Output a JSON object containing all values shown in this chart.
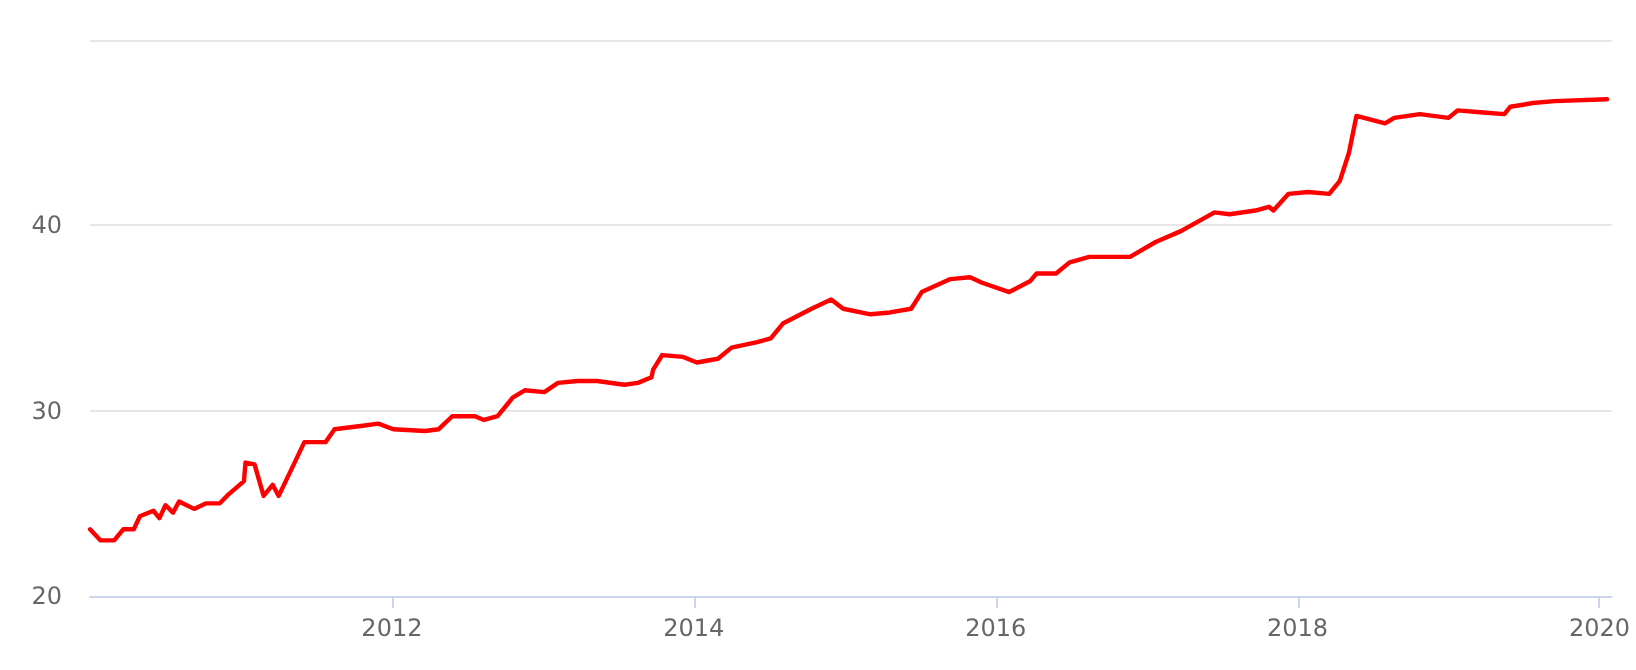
{
  "chart_data": {
    "type": "line",
    "x": [
      2010.0,
      2010.07,
      2010.16,
      2010.22,
      2010.29,
      2010.33,
      2010.42,
      2010.46,
      2010.5,
      2010.55,
      2010.59,
      2010.69,
      2010.77,
      2010.86,
      2010.92,
      2011.02,
      2011.03,
      2011.09,
      2011.15,
      2011.21,
      2011.25,
      2011.35,
      2011.42,
      2011.56,
      2011.62,
      2011.82,
      2011.91,
      2012.01,
      2012.22,
      2012.31,
      2012.4,
      2012.55,
      2012.61,
      2012.7,
      2012.8,
      2012.88,
      2013.01,
      2013.1,
      2013.23,
      2013.36,
      2013.54,
      2013.63,
      2013.72,
      2013.73,
      2013.79,
      2013.93,
      2014.02,
      2014.16,
      2014.25,
      2014.42,
      2014.51,
      2014.59,
      2014.78,
      2014.91,
      2014.99,
      2015.17,
      2015.3,
      2015.44,
      2015.51,
      2015.7,
      2015.83,
      2015.91,
      2016.09,
      2016.23,
      2016.27,
      2016.4,
      2016.49,
      2016.62,
      2016.89,
      2017.06,
      2017.23,
      2017.45,
      2017.55,
      2017.72,
      2017.81,
      2017.84,
      2017.94,
      2018.07,
      2018.21,
      2018.28,
      2018.34,
      2018.39,
      2018.58,
      2018.64,
      2018.81,
      2019.0,
      2019.06,
      2019.21,
      2019.37,
      2019.41,
      2019.56,
      2019.7,
      2020.05
    ],
    "series": [
      {
        "color": "#ff0000",
        "values": [
          23.6,
          23.0,
          23.0,
          23.6,
          23.6,
          24.3,
          24.6,
          24.2,
          24.9,
          24.5,
          25.1,
          24.7,
          25.0,
          25.0,
          25.5,
          26.2,
          27.2,
          27.1,
          25.4,
          26.0,
          25.4,
          27.1,
          28.3,
          28.3,
          29.0,
          29.2,
          29.3,
          29.0,
          28.9,
          29.0,
          29.7,
          29.7,
          29.5,
          29.7,
          30.7,
          31.1,
          31.0,
          31.5,
          31.6,
          31.6,
          31.4,
          31.5,
          31.8,
          32.2,
          33.0,
          32.9,
          32.6,
          32.8,
          33.4,
          33.7,
          33.9,
          34.7,
          35.5,
          36.0,
          35.5,
          35.2,
          35.3,
          35.5,
          36.4,
          37.1,
          37.2,
          36.9,
          36.4,
          37.0,
          37.4,
          37.4,
          38.0,
          38.3,
          38.3,
          39.1,
          39.7,
          40.7,
          40.6,
          40.8,
          41.0,
          40.8,
          41.7,
          41.8,
          41.7,
          42.4,
          43.9,
          45.9,
          45.5,
          45.8,
          46.0,
          45.8,
          46.2,
          46.1,
          46.0,
          46.4,
          46.6,
          46.7,
          46.8
        ]
      }
    ],
    "xlim": [
      2010,
      2020.08
    ],
    "xticks": [
      2012,
      2014,
      2016,
      2018,
      2020
    ],
    "ylim": [
      20,
      50
    ],
    "yticks": [
      20,
      30,
      40,
      {
        "value": 50,
        "label": null
      }
    ],
    "grid": "y",
    "marker": "none",
    "line_style": "solid"
  }
}
